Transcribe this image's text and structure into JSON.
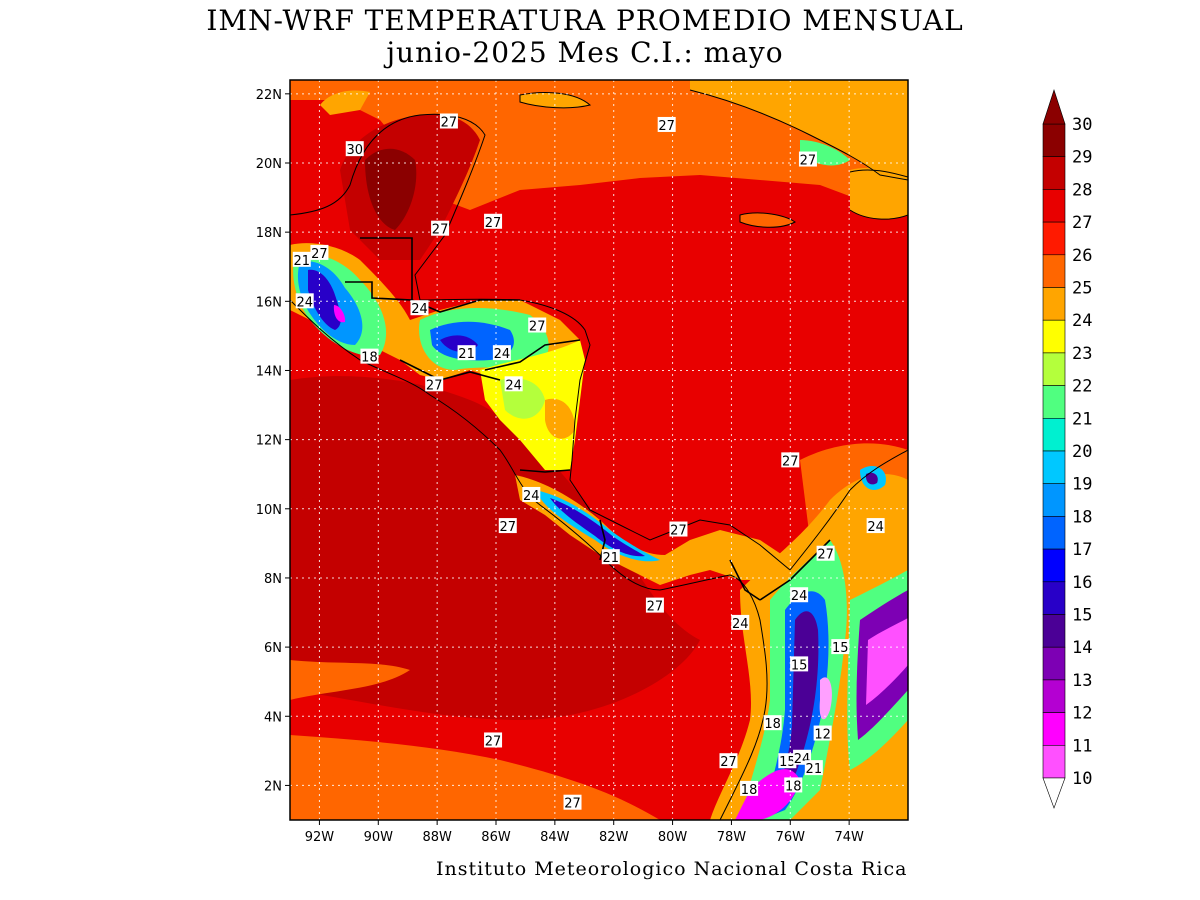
{
  "header": {
    "title_line1": "IMN-WRF  TEMPERATURA PROMEDIO MENSUAL",
    "title_line2": "junio-2025 Mes C.I.: mayo"
  },
  "footer": {
    "credit": "Instituto Meteorologico Nacional Costa Rica"
  },
  "map": {
    "lat_ticks": [
      "22N",
      "20N",
      "18N",
      "16N",
      "14N",
      "12N",
      "10N",
      "8N",
      "6N",
      "4N",
      "2N"
    ],
    "lat_values": [
      22,
      20,
      18,
      16,
      14,
      12,
      10,
      8,
      6,
      4,
      2
    ],
    "lon_ticks": [
      "92W",
      "90W",
      "88W",
      "86W",
      "84W",
      "82W",
      "80W",
      "78W",
      "76W",
      "74W"
    ],
    "lon_values": [
      -92,
      -90,
      -88,
      -86,
      -84,
      -82,
      -80,
      -78,
      -76,
      -74
    ],
    "lon_range": [
      -93,
      -72
    ],
    "lat_range": [
      1,
      22.4
    ],
    "contour_labels": [
      {
        "text": "27",
        "lon": -87.6,
        "lat": 21.2
      },
      {
        "text": "27",
        "lon": -80.2,
        "lat": 21.1
      },
      {
        "text": "27",
        "lon": -75.4,
        "lat": 20.1
      },
      {
        "text": "30",
        "lon": -90.8,
        "lat": 20.4
      },
      {
        "text": "27",
        "lon": -87.9,
        "lat": 18.1
      },
      {
        "text": "27",
        "lon": -86.1,
        "lat": 18.3
      },
      {
        "text": "27",
        "lon": -92.0,
        "lat": 17.4
      },
      {
        "text": "21",
        "lon": -92.6,
        "lat": 17.2
      },
      {
        "text": "24",
        "lon": -92.5,
        "lat": 16.0
      },
      {
        "text": "24",
        "lon": -88.6,
        "lat": 15.8
      },
      {
        "text": "27",
        "lon": -84.6,
        "lat": 15.3
      },
      {
        "text": "18",
        "lon": -90.3,
        "lat": 14.4
      },
      {
        "text": "21",
        "lon": -87.0,
        "lat": 14.5
      },
      {
        "text": "24",
        "lon": -85.8,
        "lat": 14.5
      },
      {
        "text": "24",
        "lon": -85.4,
        "lat": 13.6
      },
      {
        "text": "27",
        "lon": -88.1,
        "lat": 13.6
      },
      {
        "text": "27",
        "lon": -76.0,
        "lat": 11.4
      },
      {
        "text": "24",
        "lon": -84.8,
        "lat": 10.4
      },
      {
        "text": "27",
        "lon": -85.6,
        "lat": 9.5
      },
      {
        "text": "24",
        "lon": -73.1,
        "lat": 9.5
      },
      {
        "text": "27",
        "lon": -79.8,
        "lat": 9.4
      },
      {
        "text": "21",
        "lon": -82.1,
        "lat": 8.6
      },
      {
        "text": "27",
        "lon": -74.8,
        "lat": 8.7
      },
      {
        "text": "27",
        "lon": -80.6,
        "lat": 7.2
      },
      {
        "text": "24",
        "lon": -75.7,
        "lat": 7.5
      },
      {
        "text": "24",
        "lon": -77.7,
        "lat": 6.7
      },
      {
        "text": "15",
        "lon": -74.3,
        "lat": 6.0
      },
      {
        "text": "15",
        "lon": -75.7,
        "lat": 5.5
      },
      {
        "text": "18",
        "lon": -76.6,
        "lat": 3.8
      },
      {
        "text": "12",
        "lon": -74.9,
        "lat": 3.5
      },
      {
        "text": "27",
        "lon": -86.1,
        "lat": 3.3
      },
      {
        "text": "27",
        "lon": -78.1,
        "lat": 2.7
      },
      {
        "text": "15",
        "lon": -76.1,
        "lat": 2.7
      },
      {
        "text": "24",
        "lon": -75.6,
        "lat": 2.8
      },
      {
        "text": "21",
        "lon": -75.2,
        "lat": 2.5
      },
      {
        "text": "18",
        "lon": -77.4,
        "lat": 1.9
      },
      {
        "text": "18",
        "lon": -75.9,
        "lat": 2.0
      },
      {
        "text": "27",
        "lon": -83.4,
        "lat": 1.5
      }
    ]
  },
  "colorbar": {
    "labels": [
      "30",
      "29",
      "28",
      "27",
      "26",
      "25",
      "24",
      "23",
      "22",
      "21",
      "20",
      "19",
      "18",
      "17",
      "16",
      "15",
      "14",
      "13",
      "12",
      "11",
      "10"
    ],
    "values": [
      30,
      29,
      28,
      27,
      26,
      25,
      24,
      23,
      22,
      21,
      20,
      19,
      18,
      17,
      16,
      15,
      14,
      13,
      12,
      11,
      10
    ],
    "colors": [
      "#8b0000",
      "#c40000",
      "#e80000",
      "#ff1a00",
      "#ff6600",
      "#ffa500",
      "#ffff00",
      "#b4ff3c",
      "#50ff80",
      "#00f0d0",
      "#00c8ff",
      "#0096ff",
      "#0064ff",
      "#0000ff",
      "#2800c8",
      "#4b0096",
      "#7d00b4",
      "#b400d2",
      "#ff00ff",
      "#ff50ff",
      "#ffa0ff"
    ]
  }
}
